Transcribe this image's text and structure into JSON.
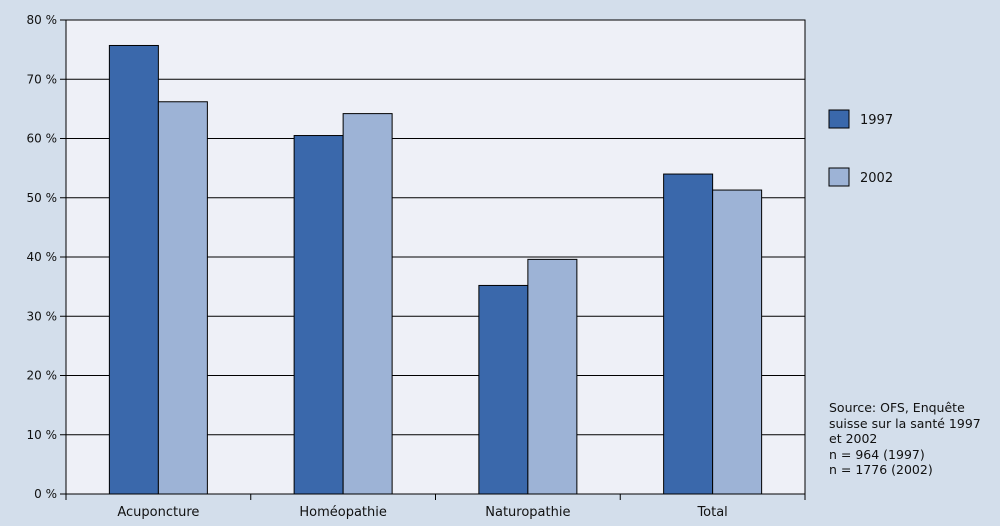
{
  "chart_data": {
    "type": "bar",
    "categories": [
      "Acuponcture",
      "Homéopathie",
      "Naturopathie",
      "Total"
    ],
    "series": [
      {
        "name": "1997",
        "values": [
          75.7,
          60.5,
          35.2,
          54.0
        ],
        "color": "#3a68ab"
      },
      {
        "name": "2002",
        "values": [
          66.2,
          64.2,
          39.6,
          51.3
        ],
        "color": "#9db3d6"
      }
    ],
    "yticks": [
      "0 %",
      "10 %",
      "20 %",
      "30 %",
      "40 %",
      "50 %",
      "60 %",
      "70 %",
      "80 %"
    ],
    "ylim": [
      0,
      80
    ],
    "grid": true,
    "legend_position": "right",
    "title": "",
    "xlabel": "",
    "ylabel": ""
  },
  "source_note": {
    "lines": [
      "Source: OFS, Enquête",
      "suisse sur la santé 1997",
      "et 2002",
      "n = 964 (1997)",
      "n = 1776 (2002)"
    ]
  },
  "colors": {
    "background": "#d3deeb",
    "plot_background": "#eef0f7",
    "grid": "#000000"
  }
}
